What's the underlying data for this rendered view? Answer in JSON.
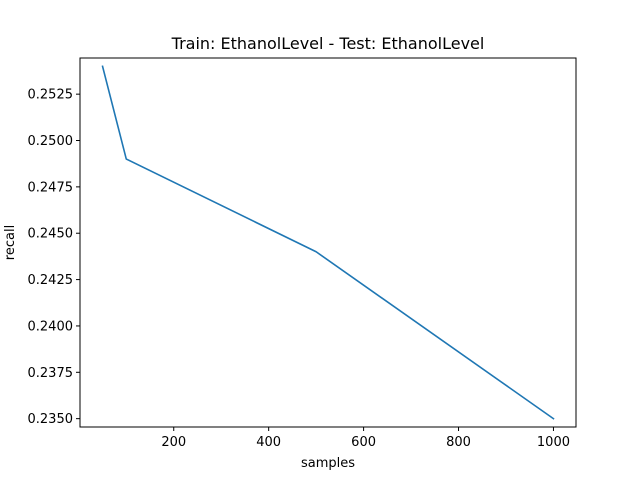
{
  "chart_data": {
    "type": "line",
    "title": "Train: EthanolLevel - Test: EthanolLevel",
    "xlabel": "samples",
    "ylabel": "recall",
    "x": [
      50,
      100,
      500,
      1000
    ],
    "series": [
      {
        "values": [
          0.254,
          0.249,
          0.244,
          0.235
        ],
        "color": "#1f77b4"
      }
    ],
    "xlim": [
      2.5,
      1047.5
    ],
    "ylim": [
      0.23455,
      0.25445
    ],
    "xticks": [
      200,
      400,
      600,
      800,
      1000
    ],
    "xtick_labels": [
      "200",
      "400",
      "600",
      "800",
      "1000"
    ],
    "yticks": [
      0.235,
      0.2375,
      0.24,
      0.2425,
      0.245,
      0.2475,
      0.25,
      0.2525
    ],
    "ytick_labels": [
      "0.2350",
      "0.2375",
      "0.2400",
      "0.2425",
      "0.2450",
      "0.2475",
      "0.2500",
      "0.2525"
    ],
    "grid": false,
    "legend": false
  }
}
